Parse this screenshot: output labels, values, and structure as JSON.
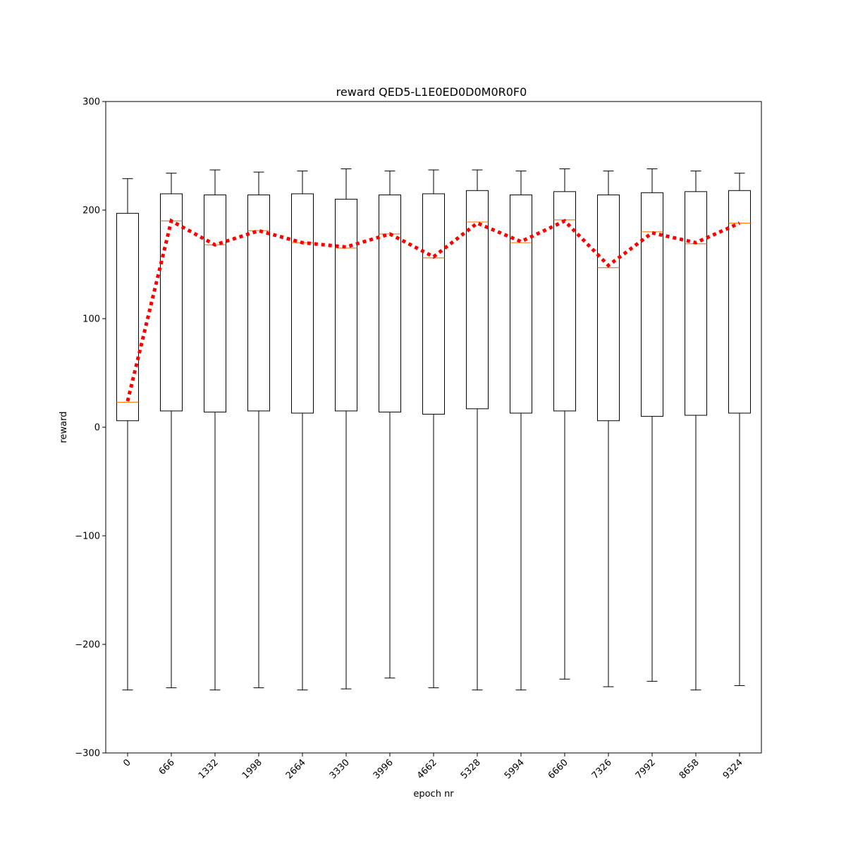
{
  "chart_data": {
    "type": "boxplot",
    "title": "reward QED5-L1E0ED0D0M0R0F0",
    "xlabel": "epoch nr",
    "ylabel": "reward",
    "ylim": [
      -300,
      300
    ],
    "yticks": [
      -300,
      -200,
      -100,
      0,
      100,
      200,
      300
    ],
    "ytick_labels": [
      "−300",
      "−200",
      "−100",
      "0",
      "100",
      "200",
      "300"
    ],
    "categories": [
      "0",
      "666",
      "1332",
      "1998",
      "2664",
      "3330",
      "3996",
      "4662",
      "5328",
      "5994",
      "6660",
      "7326",
      "7992",
      "8658",
      "9324"
    ],
    "boxes": [
      {
        "whisker_low": -242,
        "q1": 6,
        "median": 23,
        "q3": 197,
        "whisker_high": 229
      },
      {
        "whisker_low": -240,
        "q1": 15,
        "median": 190,
        "q3": 215,
        "whisker_high": 234
      },
      {
        "whisker_low": -242,
        "q1": 14,
        "median": 168,
        "q3": 214,
        "whisker_high": 237
      },
      {
        "whisker_low": -240,
        "q1": 15,
        "median": 181,
        "q3": 214,
        "whisker_high": 235
      },
      {
        "whisker_low": -242,
        "q1": 13,
        "median": 170,
        "q3": 215,
        "whisker_high": 236
      },
      {
        "whisker_low": -241,
        "q1": 15,
        "median": 165,
        "q3": 210,
        "whisker_high": 238
      },
      {
        "whisker_low": -231,
        "q1": 14,
        "median": 178,
        "q3": 214,
        "whisker_high": 236
      },
      {
        "whisker_low": -240,
        "q1": 12,
        "median": 156,
        "q3": 215,
        "whisker_high": 237
      },
      {
        "whisker_low": -242,
        "q1": 17,
        "median": 189,
        "q3": 218,
        "whisker_high": 237
      },
      {
        "whisker_low": -242,
        "q1": 13,
        "median": 170,
        "q3": 214,
        "whisker_high": 236
      },
      {
        "whisker_low": -232,
        "q1": 15,
        "median": 191,
        "q3": 217,
        "whisker_high": 238
      },
      {
        "whisker_low": -239,
        "q1": 6,
        "median": 147,
        "q3": 214,
        "whisker_high": 236
      },
      {
        "whisker_low": -234,
        "q1": 10,
        "median": 180,
        "q3": 216,
        "whisker_high": 238
      },
      {
        "whisker_low": -242,
        "q1": 11,
        "median": 169,
        "q3": 217,
        "whisker_high": 236
      },
      {
        "whisker_low": -238,
        "q1": 13,
        "median": 188,
        "q3": 218,
        "whisker_high": 234
      }
    ],
    "trend_line": [
      24,
      190,
      168,
      181,
      170,
      166,
      178,
      157,
      188,
      171,
      190,
      149,
      179,
      170,
      188
    ],
    "colors": {
      "box": "#000000",
      "median": "#ff7f0e",
      "trend": "#ff0000"
    },
    "grid": false,
    "legend": "none"
  }
}
